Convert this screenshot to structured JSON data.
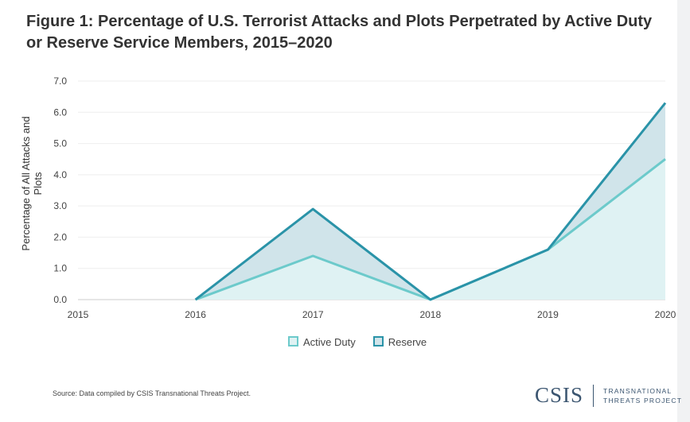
{
  "chart_data": {
    "type": "area",
    "title": "Figure 1: Percentage of U.S. Terrorist Attacks and Plots Perpetrated by Active Duty or Reserve Service Members, 2015–2020",
    "xlabel": "",
    "ylabel": "Percentage of All Attacks and Plots",
    "x": [
      "2015",
      "2016",
      "2017",
      "2018",
      "2019",
      "2020"
    ],
    "ylim": [
      0,
      7
    ],
    "yticks": [
      "0.0",
      "1.0",
      "2.0",
      "3.0",
      "4.0",
      "5.0",
      "6.0",
      "7.0"
    ],
    "series": [
      {
        "name": "Active Duty",
        "values": [
          null,
          0,
          1.4,
          0,
          1.6,
          4.5
        ],
        "color": "#6ccacb",
        "fill": "#dff2f3"
      },
      {
        "name": "Reserve",
        "values": [
          null,
          0,
          2.9,
          0,
          1.6,
          6.3
        ],
        "color": "#2a93a8",
        "fill": "#d0e4ea"
      }
    ],
    "grid": true,
    "legend": "bottom"
  },
  "source": "Source: Data compiled by CSIS Transnational Threats Project.",
  "logo": {
    "name": "CSIS",
    "line1": "TRANSNATIONAL",
    "line2": "THREATS PROJECT"
  }
}
